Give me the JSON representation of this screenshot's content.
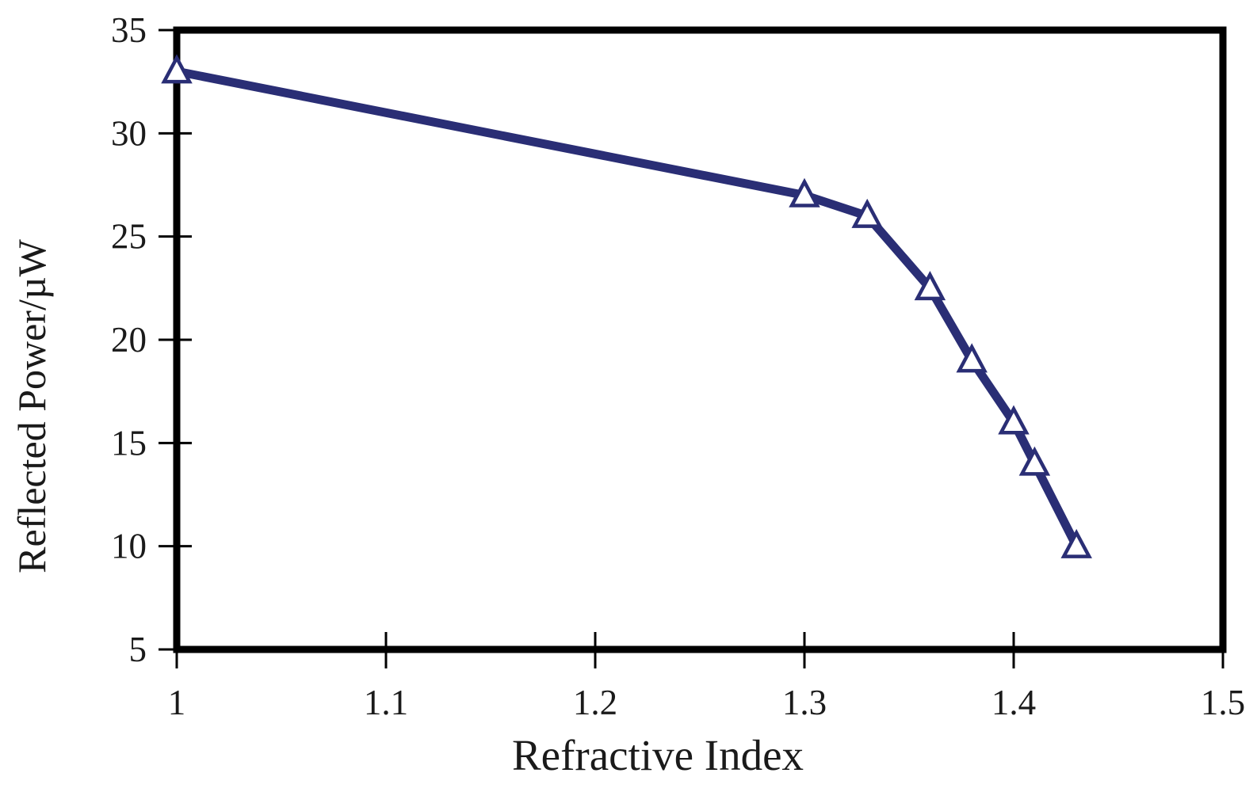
{
  "chart_data": {
    "type": "line",
    "title": "",
    "xlabel": "Refractive Index",
    "ylabel": "Reflected Power/µW",
    "xlim": [
      1.0,
      1.5
    ],
    "ylim": [
      5,
      35
    ],
    "xticks": {
      "values": [
        1.0,
        1.1,
        1.2,
        1.3,
        1.4,
        1.5
      ],
      "labels": [
        "1",
        "1.1",
        "1.2",
        "1.3",
        "1.4",
        "1.5"
      ]
    },
    "yticks": {
      "values": [
        5,
        10,
        15,
        20,
        25,
        30,
        35
      ],
      "labels": [
        "5",
        "10",
        "15",
        "20",
        "25",
        "30",
        "35"
      ]
    },
    "grid": false,
    "legend": "none",
    "background": "#ffffff",
    "axis_color": "#000000",
    "series": [
      {
        "name": "reflected-power-vs-refractive-index",
        "x": [
          1.0,
          1.3,
          1.33,
          1.36,
          1.38,
          1.4,
          1.41,
          1.43
        ],
        "y": [
          33,
          27,
          26,
          22.5,
          19,
          16,
          14,
          10
        ],
        "line_color": "#2a2e75",
        "line_width": 11,
        "marker": "triangle-open",
        "marker_fill": "#ffffff",
        "marker_stroke": "#2a2e75"
      }
    ]
  }
}
